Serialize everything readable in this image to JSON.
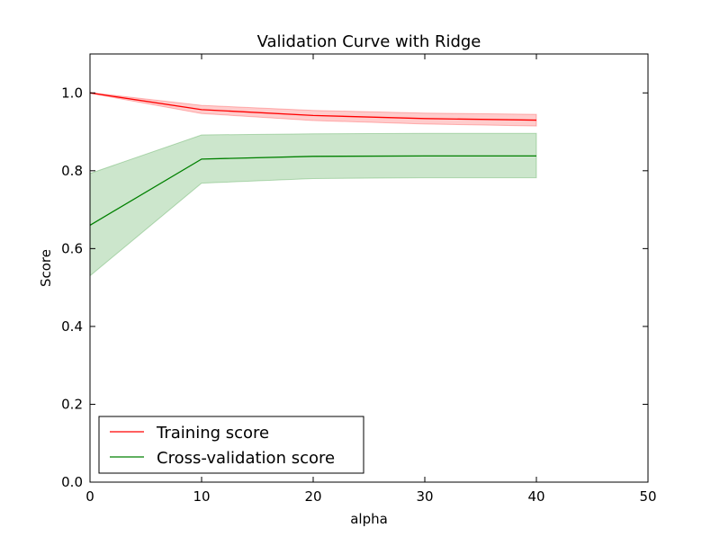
{
  "chart_data": {
    "type": "line",
    "title": "Validation Curve with Ridge",
    "xlabel": "alpha",
    "ylabel": "Score",
    "xlim": [
      0,
      50
    ],
    "ylim": [
      0,
      1.1
    ],
    "xticks": [
      0,
      10,
      20,
      30,
      40,
      50
    ],
    "xtick_labels": [
      "0",
      "10",
      "20",
      "30",
      "40",
      "50"
    ],
    "yticks": [
      0.0,
      0.2,
      0.4,
      0.6,
      0.8,
      1.0
    ],
    "ytick_labels": [
      "0.0",
      "0.2",
      "0.4",
      "0.6",
      "0.8",
      "1.0"
    ],
    "grid": false,
    "legend_position": "lower-left",
    "x": [
      0,
      10,
      20,
      30,
      40
    ],
    "series": [
      {
        "name": "Training score",
        "color": "#ff0000",
        "values": [
          1.0,
          0.957,
          0.942,
          0.934,
          0.93
        ],
        "band_lower": [
          0.999,
          0.947,
          0.929,
          0.92,
          0.915
        ],
        "band_upper": [
          1.001,
          0.968,
          0.955,
          0.948,
          0.945
        ]
      },
      {
        "name": "Cross-validation score",
        "color": "#008000",
        "values": [
          0.66,
          0.83,
          0.837,
          0.838,
          0.838
        ],
        "band_lower": [
          0.53,
          0.768,
          0.78,
          0.782,
          0.782
        ],
        "band_upper": [
          0.793,
          0.892,
          0.895,
          0.896,
          0.896
        ]
      }
    ]
  }
}
